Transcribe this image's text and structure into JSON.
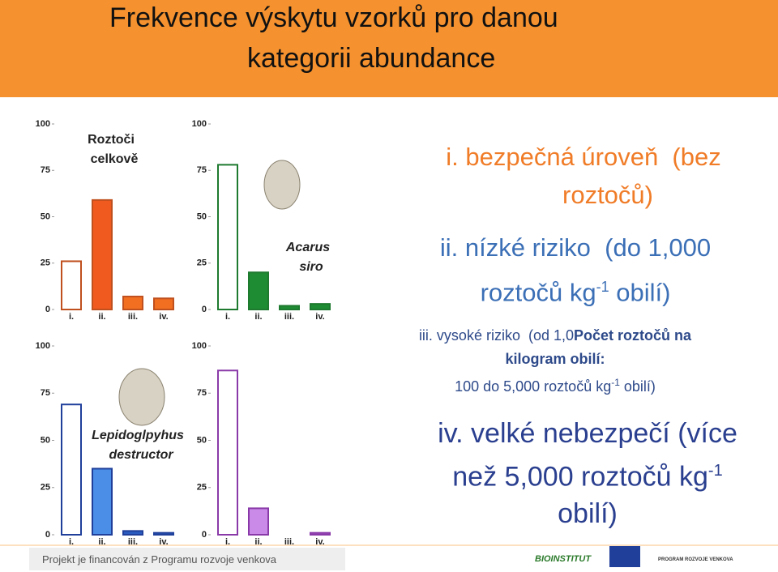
{
  "header": {
    "title": [
      "Frekvence výskytu vzorků pro danou",
      "kategorii abundance"
    ]
  },
  "chart_data": [
    {
      "type": "bar",
      "title": [
        "Roztoči",
        "celkově"
      ],
      "categories": [
        "i.",
        "ii.",
        "iii.",
        "iv."
      ],
      "values": [
        26,
        59,
        7,
        6
      ],
      "color": "#c0501e",
      "fills": [
        "#ffffff",
        "#f05a1e",
        "#f26f21",
        "#f26f21"
      ],
      "ylim": [
        0,
        100
      ],
      "yticks": [
        0,
        25,
        50,
        75,
        100
      ]
    },
    {
      "type": "bar",
      "title": [
        "Acarus",
        "siro"
      ],
      "categories": [
        "i.",
        "ii.",
        "iii.",
        "iv."
      ],
      "values": [
        78,
        20,
        2,
        3
      ],
      "color": "#1e7a2e",
      "fills": [
        "#ffffff",
        "#1e8c32",
        "#1e8c32",
        "#1e8c32"
      ],
      "ylim": [
        0,
        100
      ],
      "yticks": [
        0,
        25,
        50,
        75,
        100
      ]
    },
    {
      "type": "bar",
      "title": [
        "Lepidoglpyhus",
        "destructor"
      ],
      "categories": [
        "i.",
        "ii.",
        "iii.",
        "iv."
      ],
      "values": [
        69,
        35,
        2,
        1
      ],
      "color": "#1f3f9a",
      "fills": [
        "#ffffff",
        "#4a8ee8",
        "#2a5cc0",
        "#2a5cc0"
      ],
      "ylim": [
        0,
        100
      ],
      "yticks": [
        0,
        25,
        50,
        75,
        100
      ]
    },
    {
      "type": "bar",
      "categories": [
        "i.",
        "ii.",
        "iii.",
        "iv."
      ],
      "values": [
        87,
        14,
        0,
        1
      ],
      "color": "#8a3aa8",
      "fills": [
        "#ffffff",
        "#c98ae8",
        "#a050c0",
        "#a050c0"
      ],
      "ylim": [
        0,
        100
      ],
      "yticks": [
        0,
        25,
        50,
        75,
        100
      ]
    }
  ],
  "items": [
    [
      "i. bezpečná úroveň  (bez",
      "roztočů)"
    ],
    [
      "ii. nízké riziko  (do 1,000",
      "roztočů kg",
      "-1",
      " obilí)"
    ],
    [
      "iii. vysoké riziko  (od 1,0",
      "Počet roztočů na",
      "kilogram obilí:",
      "100 do 5,000 roztočů kg",
      "-1",
      " obilí)"
    ],
    [
      "iv. velké nebezpečí (více",
      "než 5,000 roztočů kg",
      "-1",
      "obilí)"
    ]
  ],
  "footer": {
    "text": "Projekt je financován z Programu rozvoje venkova",
    "logo1": "BIOINSTITUT",
    "logo2": "PROGRAM ROZVOJE VENKOVA"
  }
}
